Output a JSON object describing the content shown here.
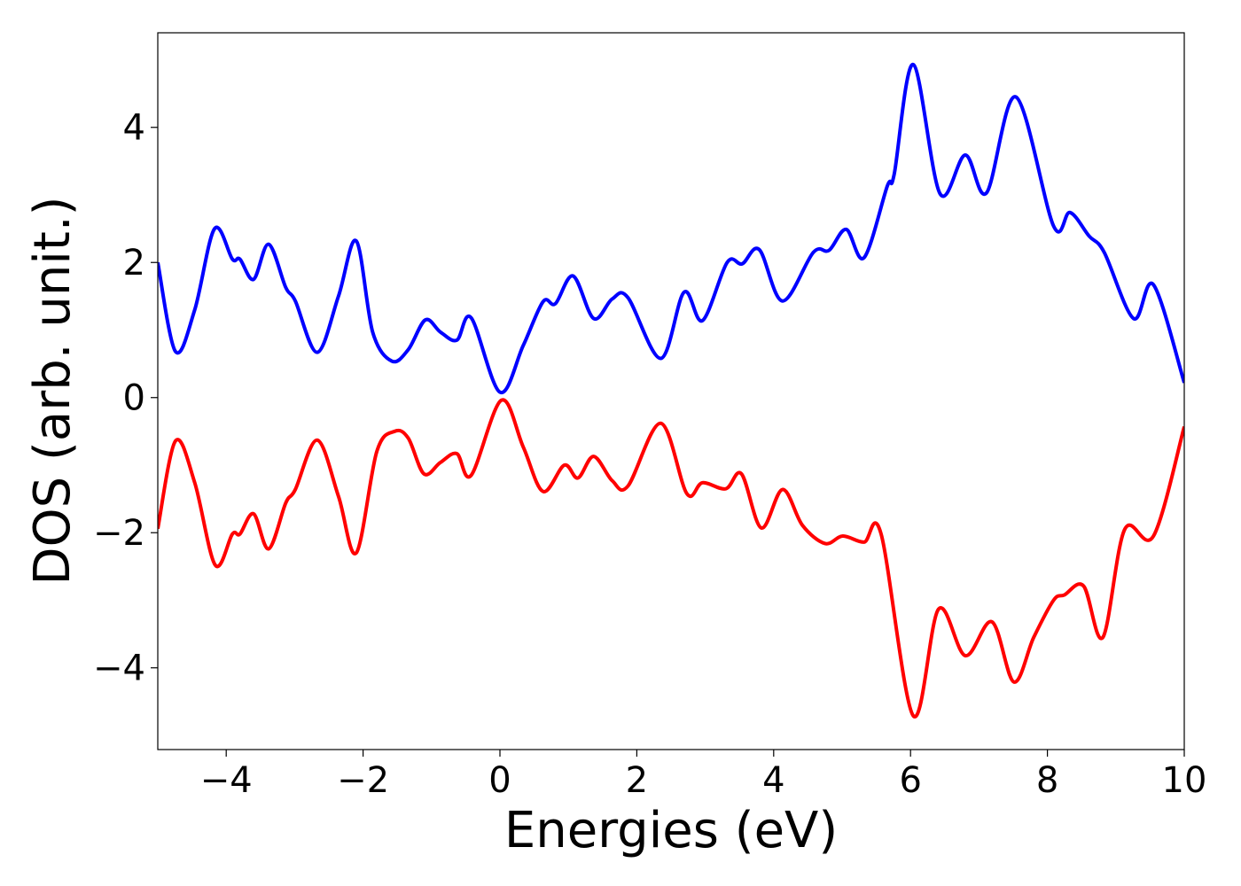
{
  "chart_data": {
    "type": "line",
    "xlabel": "Energies (eV)",
    "ylabel": "DOS (arb. unit.)",
    "xlim": [
      -5,
      10
    ],
    "ylim": [
      -5.21,
      5.4
    ],
    "xticks": [
      {
        "value": -4,
        "label": "−4"
      },
      {
        "value": -2,
        "label": "−2"
      },
      0,
      2,
      4,
      6,
      8,
      10
    ],
    "yticks": [
      {
        "value": -4,
        "label": "−4"
      },
      {
        "value": -2,
        "label": "−2"
      },
      0,
      2,
      4
    ],
    "grid": false,
    "series": [
      {
        "color": "#0000ff",
        "x": [
          -5,
          -4.74,
          -4.46,
          -4.17,
          -3.91,
          -3.8,
          -3.6,
          -3.38,
          -3.13,
          -2.99,
          -2.67,
          -2.36,
          -2.1,
          -1.86,
          -1.58,
          -1.34,
          -1.09,
          -0.87,
          -0.63,
          -0.42,
          0,
          0.34,
          0.63,
          0.81,
          1.07,
          1.37,
          1.64,
          1.87,
          2.35,
          2.69,
          2.96,
          3.32,
          3.54,
          3.79,
          4.13,
          4.58,
          4.81,
          5.06,
          5.32,
          5.66,
          5.76,
          6.04,
          6.43,
          6.8,
          7.11,
          7.54,
          8.09,
          8.33,
          8.61,
          8.83,
          9.26,
          9.55,
          10
        ],
        "values": [
          2.0,
          0.68,
          1.3,
          2.5,
          2.05,
          2.05,
          1.75,
          2.27,
          1.63,
          1.43,
          0.67,
          1.5,
          2.32,
          0.97,
          0.54,
          0.71,
          1.15,
          0.97,
          0.85,
          1.18,
          0.08,
          0.77,
          1.42,
          1.39,
          1.8,
          1.17,
          1.46,
          1.48,
          0.58,
          1.56,
          1.14,
          2.0,
          1.98,
          2.19,
          1.43,
          2.15,
          2.18,
          2.49,
          2.07,
          3.13,
          3.3,
          4.93,
          3.02,
          3.59,
          3.03,
          4.45,
          2.54,
          2.74,
          2.39,
          2.15,
          1.17,
          1.67,
          0.22
        ]
      },
      {
        "color": "#ff0000",
        "x": [
          -5,
          -4.74,
          -4.46,
          -4.16,
          -3.91,
          -3.8,
          -3.6,
          -3.38,
          -3.13,
          -2.99,
          -2.67,
          -2.36,
          -2.1,
          -1.8,
          -1.54,
          -1.34,
          -1.11,
          -0.87,
          -0.63,
          -0.42,
          0.02,
          0.34,
          0.63,
          0.94,
          1.14,
          1.37,
          1.64,
          1.87,
          2.35,
          2.73,
          2.96,
          3.3,
          3.53,
          3.82,
          4.13,
          4.42,
          4.75,
          5.01,
          5.32,
          5.57,
          6.04,
          6.41,
          6.8,
          7.19,
          7.51,
          7.8,
          8.09,
          8.25,
          8.53,
          8.81,
          9.13,
          9.55,
          10
        ],
        "values": [
          -1.94,
          -0.64,
          -1.26,
          -2.48,
          -2.02,
          -2.02,
          -1.72,
          -2.24,
          -1.56,
          -1.36,
          -0.63,
          -1.46,
          -2.3,
          -0.8,
          -0.5,
          -0.6,
          -1.13,
          -0.96,
          -0.83,
          -1.15,
          -0.04,
          -0.73,
          -1.39,
          -1.0,
          -1.19,
          -0.87,
          -1.23,
          -1.31,
          -0.38,
          -1.42,
          -1.26,
          -1.35,
          -1.13,
          -1.93,
          -1.36,
          -1.89,
          -2.16,
          -2.05,
          -2.14,
          -2.02,
          -4.71,
          -3.13,
          -3.82,
          -3.32,
          -4.21,
          -3.55,
          -3.0,
          -2.92,
          -2.79,
          -3.55,
          -1.95,
          -2.05,
          -0.43
        ]
      }
    ]
  }
}
